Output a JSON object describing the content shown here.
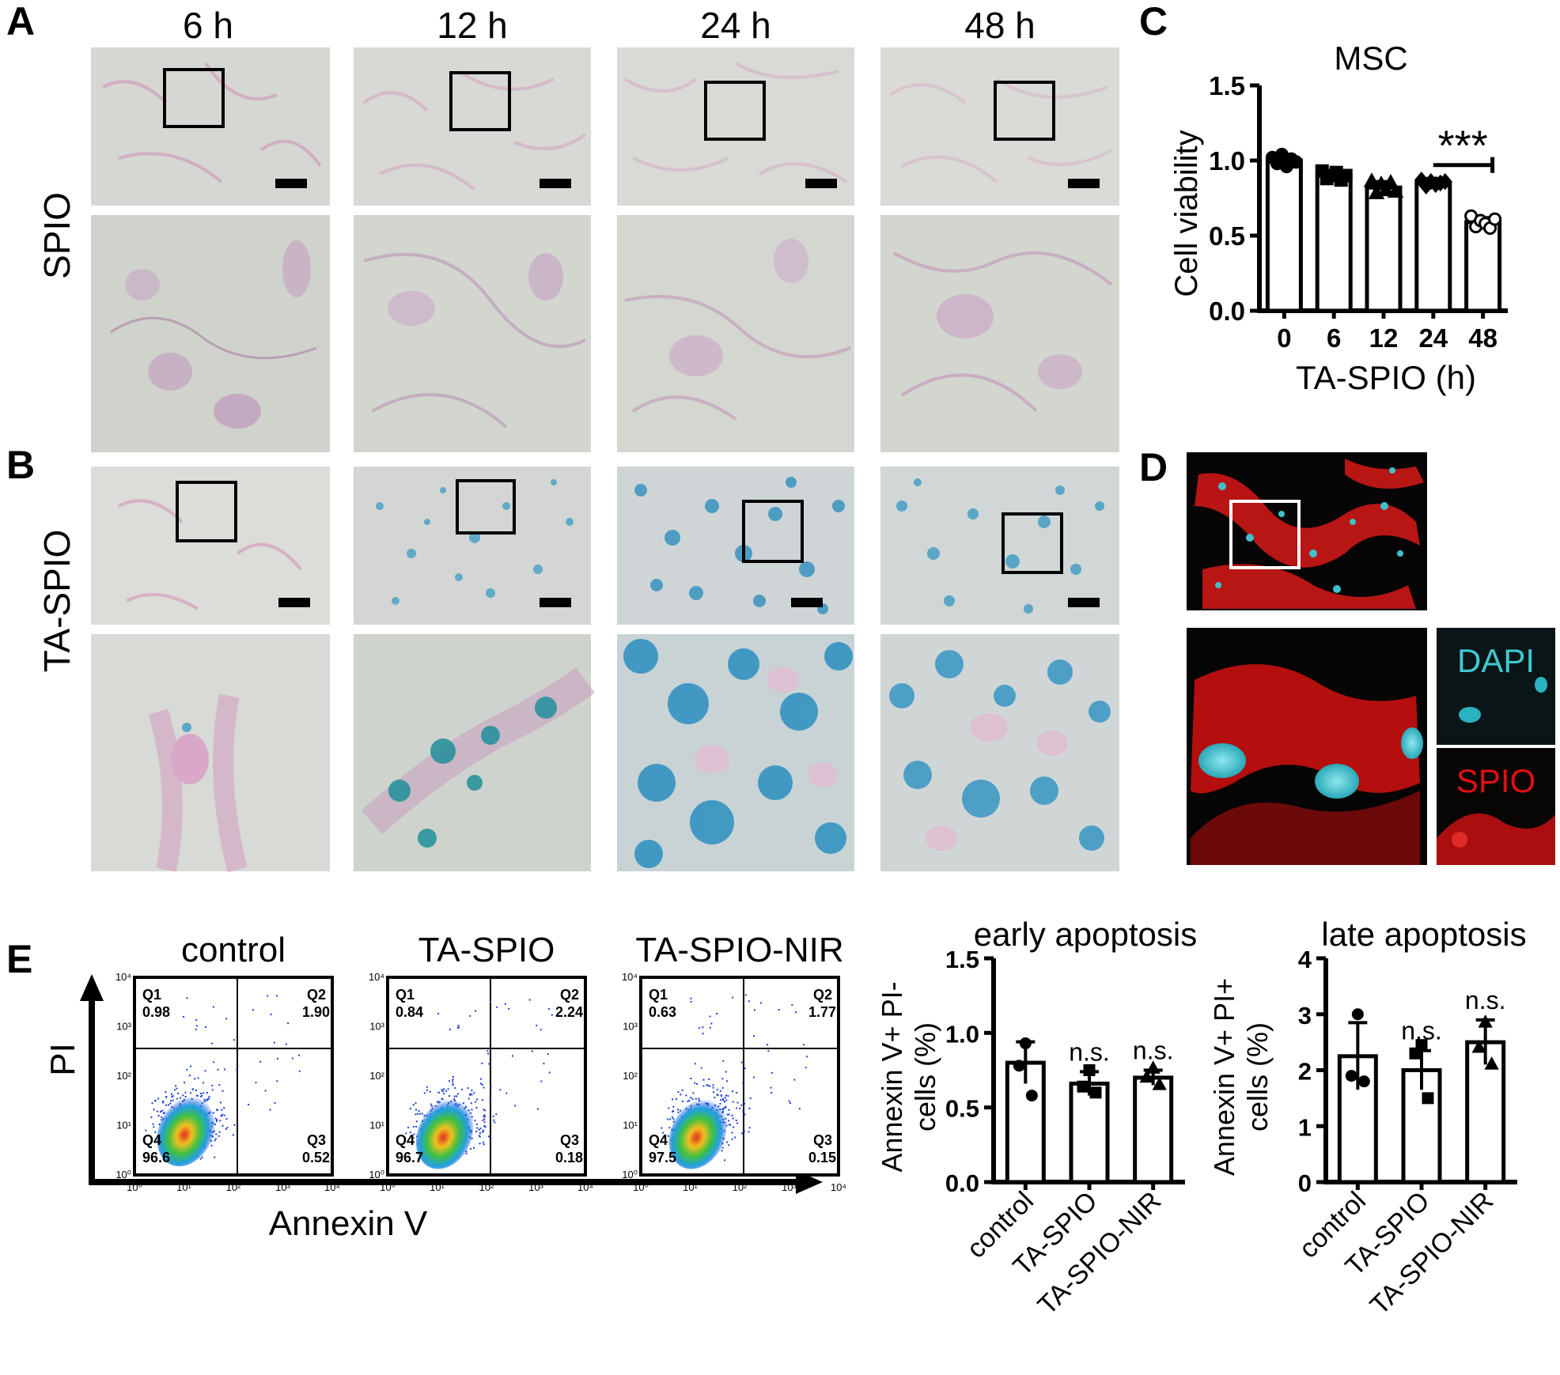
{
  "panels": {
    "A": {
      "letter": "A",
      "row_label": "SPIO",
      "time_labels": [
        "6 h",
        "12 h",
        "24 h",
        "48 h"
      ]
    },
    "B": {
      "letter": "B",
      "row_label": "TA-SPIO"
    },
    "C": {
      "letter": "C",
      "title": "MSC",
      "ylabel": "Cell viability",
      "xlabel": "TA-SPIO (h)",
      "yticks": [
        "0.0",
        "0.5",
        "1.0",
        "1.5"
      ],
      "significance": "***"
    },
    "D": {
      "letter": "D",
      "inset_top_label": "DAPI",
      "inset_bottom_label": "SPIO"
    },
    "E": {
      "letter": "E",
      "flow_x_axis": "Annexin V",
      "flow_y_axis": "PI",
      "flow_tick_labels": [
        "10⁰",
        "10¹",
        "10²",
        "10³",
        "10⁴"
      ],
      "flow_plots": [
        {
          "title": "control",
          "q1": "Q1",
          "q1v": "0.98",
          "q2": "Q2",
          "q2v": "1.90",
          "q3": "Q3",
          "q3v": "0.52",
          "q4": "Q4",
          "q4v": "96.6"
        },
        {
          "title": "TA-SPIO",
          "q1": "Q1",
          "q1v": "0.84",
          "q2": "Q2",
          "q2v": "2.24",
          "q3": "Q3",
          "q3v": "0.18",
          "q4": "Q4",
          "q4v": "96.7"
        },
        {
          "title": "TA-SPIO-NIR",
          "q1": "Q1",
          "q1v": "0.63",
          "q2": "Q2",
          "q2v": "1.77",
          "q3": "Q3",
          "q3v": "0.15",
          "q4": "Q4",
          "q4v": "97.5"
        }
      ]
    }
  },
  "colors": {
    "axis": "#000000",
    "spio_stain": "#d9a3c4",
    "ta_spio_stain": "#3a9cc4",
    "fluor_red": "#e01010",
    "fluor_cyan": "#40c8d0",
    "flow_dots": "#1a3fd6"
  },
  "chart_data": [
    {
      "id": "cell-viability",
      "type": "bar",
      "title": "MSC",
      "xlabel": "TA-SPIO (h)",
      "ylabel": "Cell viability",
      "categories": [
        "0",
        "6",
        "12",
        "24",
        "48"
      ],
      "values": [
        1.0,
        0.9,
        0.82,
        0.85,
        0.59
      ],
      "errors": [
        0.03,
        0.03,
        0.04,
        0.03,
        0.03
      ],
      "points": [
        [
          1.02,
          0.98,
          1.04,
          0.96,
          1.01,
          0.99
        ],
        [
          0.93,
          0.88,
          0.9,
          0.92,
          0.87,
          0.9
        ],
        [
          0.86,
          0.78,
          0.84,
          0.8,
          0.85,
          0.79
        ],
        [
          0.87,
          0.83,
          0.86,
          0.84,
          0.85,
          0.86
        ],
        [
          0.63,
          0.56,
          0.6,
          0.58,
          0.55,
          0.61
        ]
      ],
      "ylim": [
        0,
        1.5
      ],
      "yticks": [
        0,
        0.5,
        1.0,
        1.5
      ],
      "annotation": "***",
      "grid": false
    },
    {
      "id": "early-apoptosis",
      "type": "bar",
      "title": "early apoptosis",
      "ylabel": "Annexin V+ PI- cells (%)",
      "ylabel_lines": [
        "Annexin V+ PI-",
        "cells (%)"
      ],
      "categories": [
        "control",
        "TA-SPIO",
        "TA-SPIO-NIR"
      ],
      "values": [
        0.8,
        0.66,
        0.7
      ],
      "errors": [
        0.14,
        0.08,
        0.05
      ],
      "points": [
        [
          0.93,
          0.78,
          0.58
        ],
        [
          0.75,
          0.64,
          0.6
        ],
        [
          0.76,
          0.7,
          0.65
        ]
      ],
      "annotations": [
        "",
        "n.s.",
        "n.s."
      ],
      "ylim": [
        0,
        1.5
      ],
      "yticks": [
        "0.0",
        "0.5",
        "1.0",
        "1.5"
      ],
      "grid": false
    },
    {
      "id": "late-apoptosis",
      "type": "bar",
      "title": "late apoptosis",
      "ylabel": "Annexin V+ PI+ cells (%)",
      "ylabel_lines": [
        "Annexin V+ PI+",
        "cells (%)"
      ],
      "categories": [
        "control",
        "TA-SPIO",
        "TA-SPIO-NIR"
      ],
      "values": [
        2.25,
        2.0,
        2.5
      ],
      "errors": [
        0.6,
        0.35,
        0.4
      ],
      "points": [
        [
          3.0,
          1.9,
          1.8
        ],
        [
          2.45,
          2.3,
          1.5
        ],
        [
          2.85,
          2.4,
          2.1
        ]
      ],
      "annotations": [
        "",
        "n.s.",
        "n.s."
      ],
      "ylim": [
        0,
        4
      ],
      "yticks": [
        "0",
        "1",
        "2",
        "3",
        "4"
      ],
      "grid": false
    }
  ]
}
